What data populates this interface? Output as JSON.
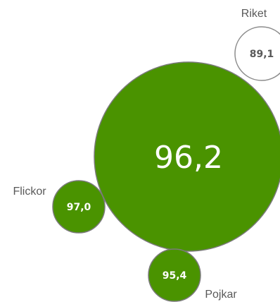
{
  "chart_data": {
    "type": "bubble",
    "bubbles": [
      {
        "name": "",
        "value": "96,2",
        "style": "filled",
        "color": "#4a9300"
      },
      {
        "name": "Riket",
        "value": "89,1",
        "style": "outline",
        "color": "#ffffff",
        "outline": "#8c8c8c",
        "value_color": "#595959"
      },
      {
        "name": "Flickor",
        "value": "97,0",
        "style": "filled",
        "color": "#4a9300"
      },
      {
        "name": "Pojkar",
        "value": "95,4",
        "style": "filled",
        "color": "#4a9300"
      }
    ]
  }
}
